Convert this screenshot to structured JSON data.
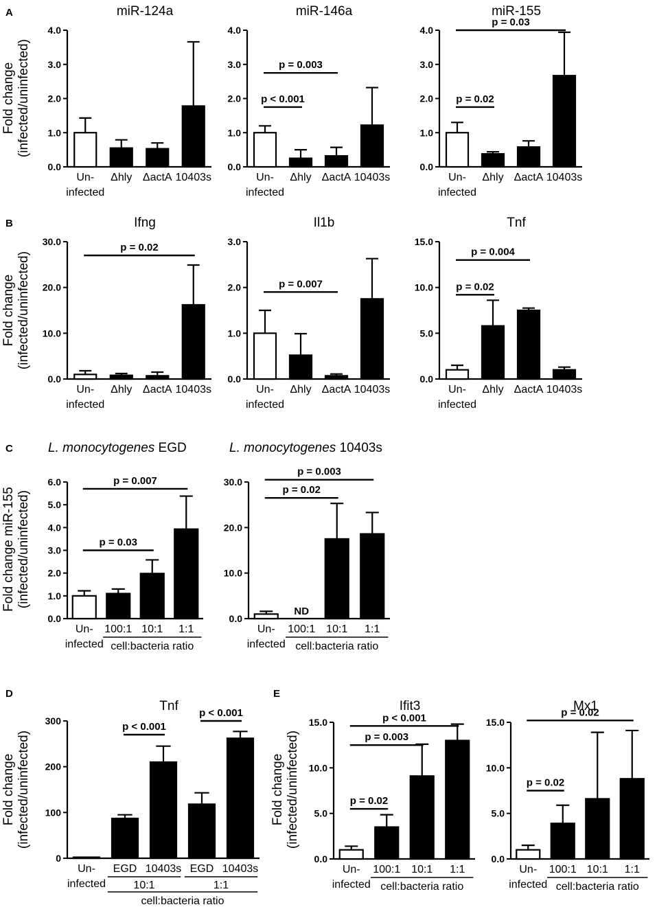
{
  "panels": [
    {
      "label": "A",
      "id": "A"
    },
    {
      "label": "B",
      "id": "B"
    },
    {
      "label": "C",
      "id": "C"
    },
    {
      "label": "D",
      "id": "D"
    },
    {
      "label": "E",
      "id": "E"
    }
  ],
  "common": {
    "ylabel_line1": "Fold change",
    "ylabel_line2": "(infected/uninfected)",
    "ylabel_c_line1": "Fold change miR-155",
    "group_label": "cell:bacteria ratio"
  },
  "chart_data": [
    {
      "id": "A1",
      "panel": "A",
      "type": "bar",
      "title": "miR-124a",
      "categories": [
        "Un-\ninfected",
        "Δhly",
        "ΔactA",
        "10403s"
      ],
      "values": [
        1.0,
        0.55,
        0.53,
        1.78
      ],
      "errors": [
        0.43,
        0.24,
        0.17,
        1.88
      ],
      "fills": [
        "open",
        "filled",
        "filled",
        "filled"
      ],
      "yticks": [
        "0.0",
        "1.0",
        "2.0",
        "3.0",
        "4.0"
      ],
      "ylim": [
        0,
        4
      ],
      "ylabel": "Fold change (infected/uninfected)",
      "annotations": []
    },
    {
      "id": "A2",
      "panel": "A",
      "type": "bar",
      "title": "miR-146a",
      "categories": [
        "Un-\ninfected",
        "Δhly",
        "ΔactA",
        "10403s"
      ],
      "values": [
        1.0,
        0.25,
        0.32,
        1.22
      ],
      "errors": [
        0.2,
        0.25,
        0.25,
        1.1
      ],
      "fills": [
        "open",
        "filled",
        "filled",
        "filled"
      ],
      "yticks": [
        "0.0",
        "1.0",
        "2.0",
        "3.0",
        "4.0"
      ],
      "ylim": [
        0,
        4
      ],
      "ylabel": "",
      "annotations": [
        {
          "text": "p < 0.001",
          "from": 0,
          "to": 1,
          "y": 1.75
        },
        {
          "text": "p = 0.003",
          "from": 0,
          "to": 2,
          "y": 2.75
        }
      ]
    },
    {
      "id": "A3",
      "panel": "A",
      "type": "bar",
      "title": "miR-155",
      "categories": [
        "Un-\ninfected",
        "Δhly",
        "ΔactA",
        "10403s"
      ],
      "values": [
        1.0,
        0.38,
        0.58,
        2.67
      ],
      "errors": [
        0.3,
        0.06,
        0.18,
        1.27
      ],
      "fills": [
        "open",
        "filled",
        "filled",
        "filled"
      ],
      "yticks": [
        "0.0",
        "1.0",
        "2.0",
        "3.0",
        "4.0"
      ],
      "ylim": [
        0,
        4
      ],
      "ylabel": "",
      "annotations": [
        {
          "text": "p = 0.02",
          "from": 0,
          "to": 1,
          "y": 1.75
        },
        {
          "text": "p = 0.03",
          "from": 0,
          "to": 3,
          "y": 4.0
        }
      ]
    },
    {
      "id": "B1",
      "panel": "B",
      "type": "bar",
      "title": "Ifng",
      "categories": [
        "Un-\ninfected",
        "Δhly",
        "ΔactA",
        "10403s"
      ],
      "values": [
        1.0,
        0.8,
        0.7,
        16.2
      ],
      "errors": [
        0.8,
        0.4,
        0.8,
        8.7
      ],
      "fills": [
        "open",
        "filled",
        "filled",
        "filled"
      ],
      "yticks": [
        "0.0",
        "10.0",
        "20.0",
        "30.0"
      ],
      "ylim": [
        0,
        30
      ],
      "ylabel": "Fold change (infected/uninfected)",
      "annotations": [
        {
          "text": "p = 0.02",
          "from": 0,
          "to": 3,
          "y": 27
        }
      ]
    },
    {
      "id": "B2",
      "panel": "B",
      "type": "bar",
      "title": "Il1b",
      "categories": [
        "Un-\ninfected",
        "Δhly",
        "ΔactA",
        "10403s"
      ],
      "values": [
        1.0,
        0.52,
        0.07,
        1.75
      ],
      "errors": [
        0.5,
        0.47,
        0.04,
        0.88
      ],
      "fills": [
        "open",
        "filled",
        "filled",
        "filled"
      ],
      "yticks": [
        "0.0",
        "1.0",
        "2.0",
        "3.0"
      ],
      "ylim": [
        0,
        3
      ],
      "ylabel": "",
      "annotations": [
        {
          "text": "p = 0.007",
          "from": 0,
          "to": 2,
          "y": 1.9
        }
      ]
    },
    {
      "id": "B3",
      "panel": "B",
      "type": "bar",
      "title": "Tnf",
      "categories": [
        "Un-\ninfected",
        "Δhly",
        "ΔactA",
        "10403s"
      ],
      "values": [
        1.0,
        5.8,
        7.5,
        1.0
      ],
      "errors": [
        0.5,
        2.8,
        0.25,
        0.3
      ],
      "fills": [
        "open",
        "filled",
        "filled",
        "filled"
      ],
      "yticks": [
        "0.0",
        "5.0",
        "10.0",
        "15.0"
      ],
      "ylim": [
        0,
        15
      ],
      "ylabel": "",
      "annotations": [
        {
          "text": "p = 0.02",
          "from": 0,
          "to": 1,
          "y": 9.2
        },
        {
          "text": "p = 0.004",
          "from": 0,
          "to": 2,
          "y": 13.0
        }
      ]
    },
    {
      "id": "C1",
      "panel": "C",
      "type": "bar",
      "title_italic": "L. monocytogenes",
      "title_rest": " EGD",
      "categories": [
        "Un-\ninfected",
        "100:1",
        "10:1",
        "1:1"
      ],
      "values": [
        1.0,
        1.1,
        1.98,
        3.93
      ],
      "errors": [
        0.22,
        0.2,
        0.6,
        1.45
      ],
      "fills": [
        "open",
        "filled",
        "filled",
        "filled"
      ],
      "yticks": [
        "0.0",
        "1.0",
        "2.0",
        "3.0",
        "4.0",
        "5.0",
        "6.0"
      ],
      "ylim": [
        0,
        6
      ],
      "ylabel": "Fold change miR-155 (infected/uninfected)",
      "group": {
        "from": 1,
        "to": 3,
        "label": "cell:bacteria ratio"
      },
      "annotations": [
        {
          "text": "p = 0.03",
          "from": 0,
          "to": 2,
          "y": 3.0
        },
        {
          "text": "p = 0.007",
          "from": 0,
          "to": 3,
          "y": 5.7
        }
      ]
    },
    {
      "id": "C2",
      "panel": "C",
      "type": "bar",
      "title_italic": "L. monocytogenes",
      "title_rest": " 10403s",
      "categories": [
        "Un-\ninfected",
        "100:1",
        "10:1",
        "1:1"
      ],
      "values": [
        1.0,
        0,
        17.5,
        18.6
      ],
      "errors": [
        0.6,
        0,
        7.8,
        4.7
      ],
      "fills": [
        "open",
        "none",
        "filled",
        "filled"
      ],
      "nd_label": {
        "index": 1,
        "text": "ND"
      },
      "yticks": [
        "0.0",
        "10.0",
        "20.0",
        "30.0"
      ],
      "ylim": [
        0,
        30
      ],
      "ylabel": "",
      "group": {
        "from": 1,
        "to": 3,
        "label": "cell:bacteria ratio"
      },
      "annotations": [
        {
          "text": "p = 0.02",
          "from": 0,
          "to": 2,
          "y": 26.5
        },
        {
          "text": "p = 0.003",
          "from": 0,
          "to": 3,
          "y": 30.5
        }
      ]
    },
    {
      "id": "D1",
      "panel": "D",
      "type": "bar",
      "title": "Tnf",
      "categories": [
        "Un-\ninfected",
        "EGD",
        "10403s",
        "EGD",
        "10403s"
      ],
      "values": [
        1.0,
        87,
        210,
        118,
        262
      ],
      "errors": [
        0.3,
        8,
        35,
        25,
        15
      ],
      "fills": [
        "open",
        "filled",
        "filled",
        "filled",
        "filled"
      ],
      "yticks": [
        "0",
        "100",
        "200",
        "300"
      ],
      "ylim": [
        0,
        300
      ],
      "ylabel": "Fold change (infected/uninfected)",
      "subgroups": [
        {
          "from": 1,
          "to": 2,
          "label": "10:1"
        },
        {
          "from": 3,
          "to": 4,
          "label": "1:1"
        }
      ],
      "group_label": "cell:bacteria ratio",
      "annotations": [
        {
          "text": "p < 0.001",
          "from": 1,
          "to": 2,
          "y": 270
        },
        {
          "text": "p < 0.001",
          "from": 3,
          "to": 4,
          "y": 300
        }
      ]
    },
    {
      "id": "E1",
      "panel": "E",
      "type": "bar",
      "title": "Ifit3",
      "categories": [
        "Un-\ninfected",
        "100:1",
        "10:1",
        "1:1"
      ],
      "values": [
        1.0,
        3.5,
        9.1,
        13.0
      ],
      "errors": [
        0.4,
        1.35,
        3.5,
        1.8
      ],
      "fills": [
        "open",
        "filled",
        "filled",
        "filled"
      ],
      "yticks": [
        "0.0",
        "5.0",
        "10.0",
        "15.0"
      ],
      "ylim": [
        0,
        15
      ],
      "ylabel": "Fold change (infected/uninfected)",
      "group": {
        "from": 1,
        "to": 3,
        "label": "cell:bacteria ratio"
      },
      "annotations": [
        {
          "text": "p = 0.02",
          "from": 0,
          "to": 1,
          "y": 5.5
        },
        {
          "text": "p = 0.003",
          "from": 0,
          "to": 2,
          "y": 12.5
        },
        {
          "text": "p < 0.001",
          "from": 0,
          "to": 3,
          "y": 14.6
        }
      ]
    },
    {
      "id": "E2",
      "panel": "E",
      "type": "bar",
      "title": "Mx1",
      "categories": [
        "Un-\ninfected",
        "100:1",
        "10:1",
        "1:1"
      ],
      "values": [
        1.0,
        3.9,
        6.6,
        8.8
      ],
      "errors": [
        0.5,
        2.0,
        7.3,
        5.3
      ],
      "fills": [
        "open",
        "filled",
        "filled",
        "filled"
      ],
      "yticks": [
        "0.0",
        "5.0",
        "10.0",
        "15.0"
      ],
      "ylim": [
        0,
        15
      ],
      "ylabel": "",
      "group": {
        "from": 1,
        "to": 3,
        "label": "cell:bacteria ratio"
      },
      "annotations": [
        {
          "text": "p = 0.02",
          "from": 0,
          "to": 1,
          "y": 7.5
        },
        {
          "text": "p = 0.02",
          "from": 0,
          "to": 3,
          "y": 15.2
        }
      ]
    }
  ]
}
